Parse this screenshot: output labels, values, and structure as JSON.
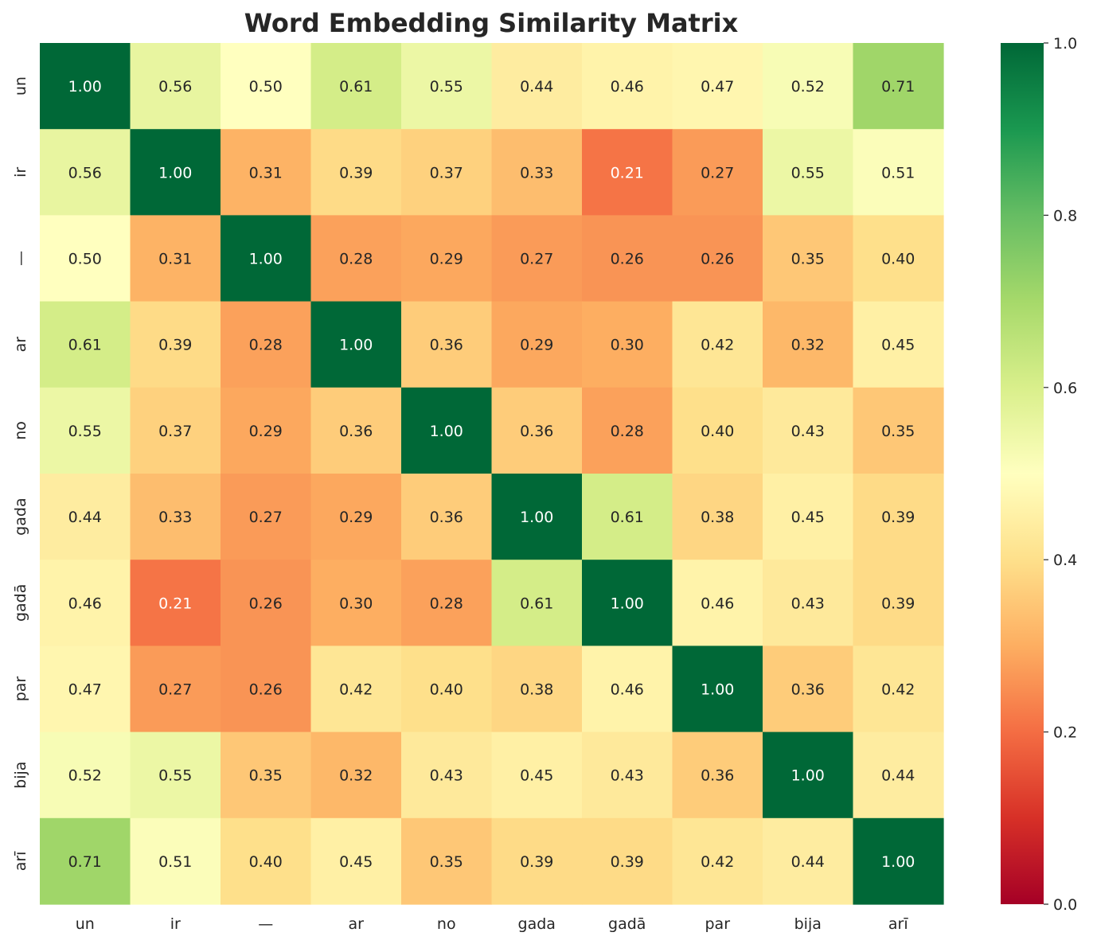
{
  "chart_data": {
    "type": "heatmap",
    "title": "Word Embedding Similarity Matrix",
    "xlabel": "",
    "ylabel": "",
    "x_categories": [
      "un",
      "ir",
      "—",
      "ar",
      "no",
      "gada",
      "gadā",
      "par",
      "bija",
      "arī"
    ],
    "y_categories": [
      "un",
      "ir",
      "—",
      "ar",
      "no",
      "gada",
      "gadā",
      "par",
      "bija",
      "arī"
    ],
    "values": [
      [
        1.0,
        0.56,
        0.5,
        0.61,
        0.55,
        0.44,
        0.46,
        0.47,
        0.52,
        0.71
      ],
      [
        0.56,
        1.0,
        0.31,
        0.39,
        0.37,
        0.33,
        0.21,
        0.27,
        0.55,
        0.51
      ],
      [
        0.5,
        0.31,
        1.0,
        0.28,
        0.29,
        0.27,
        0.26,
        0.26,
        0.35,
        0.4
      ],
      [
        0.61,
        0.39,
        0.28,
        1.0,
        0.36,
        0.29,
        0.3,
        0.42,
        0.32,
        0.45
      ],
      [
        0.55,
        0.37,
        0.29,
        0.36,
        1.0,
        0.36,
        0.28,
        0.4,
        0.43,
        0.35
      ],
      [
        0.44,
        0.33,
        0.27,
        0.29,
        0.36,
        1.0,
        0.61,
        0.38,
        0.45,
        0.39
      ],
      [
        0.46,
        0.21,
        0.26,
        0.3,
        0.28,
        0.61,
        1.0,
        0.46,
        0.43,
        0.39
      ],
      [
        0.47,
        0.27,
        0.26,
        0.42,
        0.4,
        0.38,
        0.46,
        1.0,
        0.36,
        0.42
      ],
      [
        0.52,
        0.55,
        0.35,
        0.32,
        0.43,
        0.45,
        0.43,
        0.36,
        1.0,
        0.44
      ],
      [
        0.71,
        0.51,
        0.4,
        0.45,
        0.35,
        0.39,
        0.39,
        0.42,
        0.44,
        1.0
      ]
    ],
    "colormap": "RdYlGn",
    "value_range": [
      0.0,
      1.0
    ],
    "colorbar_ticks": [
      "0.0",
      "0.2",
      "0.4",
      "0.6",
      "0.8",
      "1.0"
    ],
    "annotation_format": "0.00",
    "grid": false,
    "legend": "colorbar-right"
  }
}
